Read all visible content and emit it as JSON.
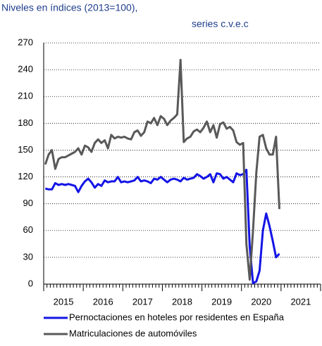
{
  "chart_data": {
    "type": "line",
    "title": "Niveles en índices (2013=100),",
    "subtitle": "series c.v.e.c",
    "categories": [
      null,
      null,
      null,
      null,
      null,
      null,
      "2015",
      null,
      null,
      null,
      null,
      null,
      null,
      null,
      null,
      null,
      null,
      null,
      "2016",
      null,
      null,
      null,
      null,
      null,
      null,
      null,
      null,
      null,
      null,
      null,
      "2017",
      null,
      null,
      null,
      null,
      null,
      null,
      null,
      null,
      null,
      null,
      null,
      "2018",
      null,
      null,
      null,
      null,
      null,
      null,
      null,
      null,
      null,
      null,
      null,
      "2019",
      null,
      null,
      null,
      null,
      null,
      null,
      null,
      null,
      null,
      null,
      null,
      "2020",
      null,
      null,
      null,
      null,
      null,
      null,
      null,
      null,
      null,
      null,
      null,
      "2021",
      null,
      null,
      null,
      null,
      null
    ],
    "series": [
      {
        "name": "Pernoctaciones en hoteles por residentes en España",
        "color": "#1414e6",
        "values": [
          107,
          106,
          106,
          113,
          111,
          112,
          111,
          112,
          111,
          110,
          103,
          110,
          115,
          118,
          114,
          108,
          112,
          110,
          116,
          114,
          115,
          115,
          120,
          114,
          115,
          114,
          115,
          116,
          120,
          115,
          116,
          115,
          113,
          118,
          117,
          120,
          117,
          114,
          117,
          118,
          117,
          115,
          119,
          117,
          118,
          119,
          123,
          121,
          118,
          120,
          123,
          114,
          124,
          123,
          118,
          120,
          117,
          114,
          124,
          122,
          123,
          128,
          42,
          1,
          3,
          15,
          60,
          79,
          65,
          48,
          30,
          34,
          null,
          null,
          null,
          null,
          null,
          null,
          null,
          null,
          null,
          null,
          null,
          null
        ]
      },
      {
        "name": "Matriculaciones de automóviles",
        "color": "#595959",
        "values": [
          134,
          145,
          150,
          129,
          140,
          142,
          142,
          144,
          146,
          148,
          152,
          145,
          155,
          153,
          148,
          158,
          162,
          158,
          161,
          152,
          167,
          163,
          165,
          164,
          165,
          163,
          162,
          170,
          172,
          166,
          170,
          182,
          180,
          186,
          178,
          188,
          185,
          178,
          183,
          186,
          190,
          251,
          159,
          163,
          165,
          171,
          173,
          170,
          175,
          182,
          170,
          178,
          164,
          179,
          181,
          174,
          176,
          172,
          159,
          156,
          158,
          45,
          5,
          60,
          125,
          165,
          167,
          152,
          145,
          145,
          165,
          84,
          null,
          null,
          null,
          null,
          null,
          null,
          null,
          null,
          null,
          null,
          null,
          null
        ]
      }
    ],
    "ylim": [
      0,
      270
    ],
    "yticks": [
      0,
      30,
      60,
      90,
      120,
      150,
      180,
      210,
      240,
      270
    ],
    "grid": true
  }
}
